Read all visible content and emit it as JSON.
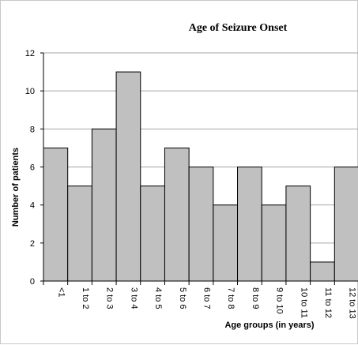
{
  "chart_data": {
    "type": "bar",
    "title": "Age of Seizure Onset",
    "xlabel": "Age groups (in years)",
    "ylabel": "Number of patients",
    "categories": [
      "<1",
      "1 to 2",
      "2 to 3",
      "3 to 4",
      "4 to 5",
      "5 to 6",
      "6 to 7",
      "7 to 8",
      "8 to 9",
      "9 to 10",
      "10 to 11",
      "11 to 12",
      "12 to 13"
    ],
    "values": [
      7,
      5,
      8,
      11,
      5,
      7,
      6,
      4,
      6,
      4,
      5,
      1,
      6
    ],
    "ylim": [
      0,
      12
    ],
    "yticks": [
      0,
      2,
      4,
      6,
      8,
      10,
      12
    ],
    "grid": true,
    "legend": "none",
    "bar_color": "#c0c0c0"
  }
}
